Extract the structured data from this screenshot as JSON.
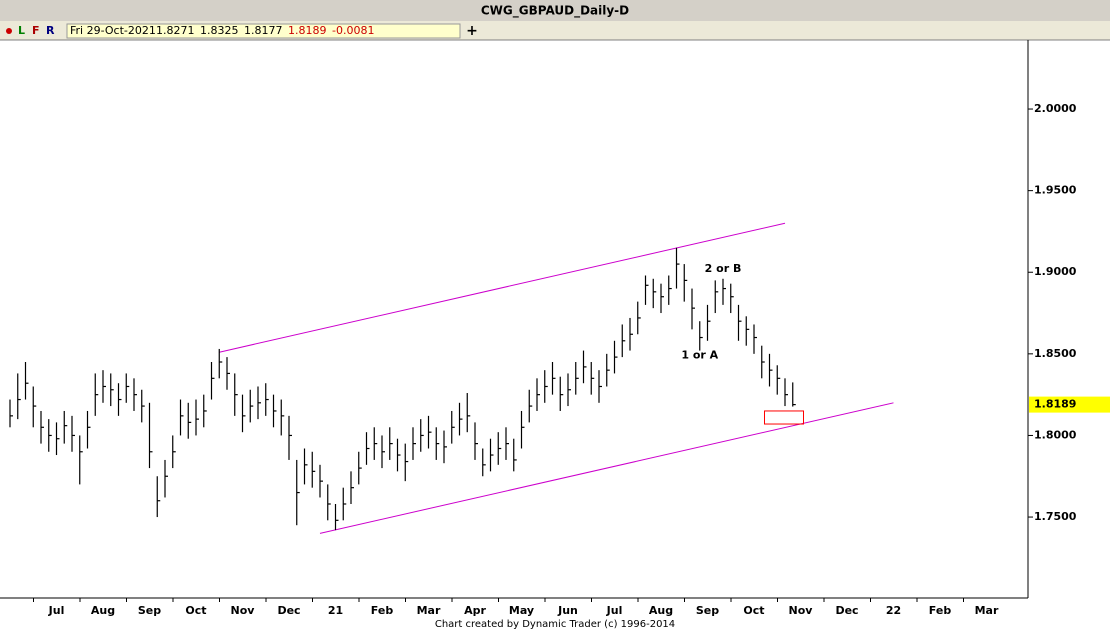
{
  "window_title": "CWG_GBPAUD_Daily-D",
  "toolbar": {
    "buttons": [
      "L",
      "F",
      "R"
    ],
    "date": "Fri 29-Oct-2021",
    "open": 1.8271,
    "high": 1.8325,
    "low": 1.8177,
    "close": 1.8189,
    "change": -0.0081
  },
  "footer": "Chart created by Dynamic Trader  (c) 1996-2014",
  "chart_data": {
    "type": "ohlc",
    "color": "#000000",
    "categories": [
      null,
      null,
      null,
      null,
      null,
      null,
      "Jul",
      null,
      null,
      null,
      null,
      null,
      "Aug",
      null,
      null,
      null,
      null,
      null,
      "Sep",
      null,
      null,
      null,
      null,
      null,
      "Oct",
      null,
      null,
      null,
      null,
      null,
      "Nov",
      null,
      null,
      null,
      null,
      null,
      "Dec",
      null,
      null,
      null,
      null,
      null,
      "21",
      null,
      null,
      null,
      null,
      null,
      "Feb",
      null,
      null,
      null,
      null,
      null,
      "Mar",
      null,
      null,
      null,
      null,
      null,
      "Apr",
      null,
      null,
      null,
      null,
      null,
      "May",
      null,
      null,
      null,
      null,
      null,
      "Jun",
      null,
      null,
      null,
      null,
      null,
      "Jul",
      null,
      null,
      null,
      null,
      null,
      "Aug",
      null,
      null,
      null,
      null,
      null,
      "Sep",
      null,
      null,
      null,
      null,
      null,
      "Oct",
      null,
      null,
      null,
      null,
      null,
      "Nov",
      null,
      null,
      null,
      null,
      null,
      "Dec",
      null,
      null,
      null,
      null,
      null,
      "22",
      null,
      null,
      null,
      null,
      null,
      "Feb",
      null,
      null,
      null,
      null,
      null,
      "Mar",
      null,
      null,
      null,
      null,
      null
    ],
    "high": [
      1.822,
      1.838,
      1.845,
      1.83,
      1.815,
      1.81,
      1.808,
      1.815,
      1.812,
      1.8,
      1.815,
      1.838,
      1.84,
      1.838,
      1.832,
      1.838,
      1.835,
      1.828,
      1.82,
      1.775,
      1.785,
      1.8,
      1.822,
      1.82,
      1.822,
      1.825,
      1.845,
      1.853,
      1.848,
      1.838,
      1.825,
      1.828,
      1.83,
      1.832,
      1.825,
      1.822,
      1.812,
      1.785,
      1.792,
      1.79,
      1.782,
      1.77,
      1.758,
      1.768,
      1.778,
      1.79,
      1.802,
      1.805,
      1.8,
      1.805,
      1.798,
      1.795,
      1.805,
      1.81,
      1.812,
      1.805,
      1.803,
      1.815,
      1.82,
      1.826,
      1.808,
      1.792,
      1.798,
      1.802,
      1.805,
      1.798,
      1.815,
      1.828,
      1.835,
      1.84,
      1.845,
      1.836,
      1.838,
      1.845,
      1.852,
      1.845,
      1.84,
      1.85,
      1.858,
      1.868,
      1.872,
      1.882,
      1.898,
      1.896,
      1.893,
      1.898,
      1.915,
      1.905,
      1.89,
      1.87,
      1.88,
      1.895,
      1.896,
      1.893,
      1.88,
      1.873,
      1.868,
      1.855,
      1.85,
      1.843,
      1.835,
      1.8325,
      null,
      null,
      null,
      null,
      null,
      null,
      null,
      null,
      null,
      null,
      null,
      null,
      null,
      null,
      null,
      null,
      null,
      null,
      null,
      null,
      null,
      null,
      null,
      null,
      null,
      null,
      null,
      null,
      null,
      null
    ],
    "low": [
      1.805,
      1.81,
      1.822,
      1.805,
      1.795,
      1.79,
      1.788,
      1.795,
      1.79,
      1.77,
      1.792,
      1.812,
      1.82,
      1.818,
      1.812,
      1.82,
      1.815,
      1.808,
      1.78,
      1.75,
      1.762,
      1.78,
      1.8,
      1.798,
      1.8,
      1.805,
      1.822,
      1.835,
      1.828,
      1.812,
      1.802,
      1.808,
      1.81,
      1.812,
      1.805,
      1.8,
      1.785,
      1.745,
      1.77,
      1.768,
      1.762,
      1.748,
      1.742,
      1.748,
      1.758,
      1.77,
      1.782,
      1.785,
      1.78,
      1.785,
      1.778,
      1.772,
      1.785,
      1.79,
      1.792,
      1.785,
      1.783,
      1.795,
      1.8,
      1.802,
      1.785,
      1.775,
      1.778,
      1.782,
      1.785,
      1.778,
      1.792,
      1.808,
      1.815,
      1.82,
      1.825,
      1.815,
      1.818,
      1.825,
      1.832,
      1.825,
      1.82,
      1.83,
      1.838,
      1.848,
      1.852,
      1.862,
      1.88,
      1.878,
      1.875,
      1.88,
      1.89,
      1.882,
      1.865,
      1.852,
      1.858,
      1.875,
      1.88,
      1.875,
      1.858,
      1.855,
      1.85,
      1.835,
      1.83,
      1.825,
      1.818,
      1.8177,
      null,
      null,
      null,
      null,
      null,
      null,
      null,
      null,
      null,
      null,
      null,
      null,
      null,
      null,
      null,
      null,
      null,
      null,
      null,
      null,
      null,
      null,
      null,
      null,
      null,
      null,
      null,
      null,
      null,
      null
    ],
    "close": [
      1.812,
      1.822,
      1.832,
      1.818,
      1.805,
      1.8,
      1.798,
      1.806,
      1.8,
      1.79,
      1.805,
      1.825,
      1.83,
      1.828,
      1.822,
      1.83,
      1.825,
      1.818,
      1.79,
      1.76,
      1.775,
      1.79,
      1.812,
      1.808,
      1.81,
      1.815,
      1.835,
      1.845,
      1.838,
      1.825,
      1.812,
      1.818,
      1.82,
      1.822,
      1.815,
      1.812,
      1.8,
      1.765,
      1.782,
      1.778,
      1.772,
      1.758,
      1.748,
      1.758,
      1.768,
      1.78,
      1.792,
      1.795,
      1.79,
      1.795,
      1.788,
      1.784,
      1.795,
      1.8,
      1.802,
      1.795,
      1.793,
      1.805,
      1.81,
      1.812,
      1.795,
      1.782,
      1.788,
      1.792,
      1.795,
      1.785,
      1.805,
      1.818,
      1.825,
      1.83,
      1.835,
      1.825,
      1.828,
      1.835,
      1.842,
      1.835,
      1.83,
      1.84,
      1.848,
      1.858,
      1.862,
      1.872,
      1.892,
      1.888,
      1.885,
      1.89,
      1.905,
      1.895,
      1.878,
      1.86,
      1.87,
      1.888,
      1.89,
      1.885,
      1.87,
      1.865,
      1.86,
      1.845,
      1.84,
      1.835,
      1.825,
      1.8189,
      null,
      null,
      null,
      null,
      null,
      null,
      null,
      null,
      null,
      null,
      null,
      null,
      null,
      null,
      null,
      null,
      null,
      null,
      null,
      null,
      null,
      null,
      null,
      null,
      null,
      null,
      null,
      null,
      null,
      null
    ],
    "ylim": [
      1.7004,
      2.0423
    ],
    "yticks": [
      {
        "value": 1.75,
        "label": "1.7500"
      },
      {
        "value": 1.8,
        "label": "1.8000"
      },
      {
        "value": 1.85,
        "label": "1.8500"
      },
      {
        "value": 1.9,
        "label": "1.9000"
      },
      {
        "value": 1.95,
        "label": "1.9500"
      },
      {
        "value": 2.0,
        "label": "2.0000"
      }
    ],
    "last_price": {
      "value": 1.8189,
      "label": "1.8189",
      "color": "#ffff00"
    },
    "trendlines": [
      {
        "x": [
          27,
          100
        ],
        "y": [
          1.851,
          1.93
        ],
        "color": "#cc00cc"
      },
      {
        "x": [
          40,
          114
        ],
        "y": [
          1.74,
          1.82
        ],
        "color": "#cc00cc"
      }
    ],
    "target_box": {
      "x": [
        98,
        102
      ],
      "y": [
        1.807,
        1.815
      ],
      "color": "#ff0000"
    },
    "annotations": [
      {
        "text": "2 or B",
        "x": 92,
        "y": 1.902
      },
      {
        "text": "1 or A",
        "x": 89,
        "y": 1.849
      }
    ]
  }
}
